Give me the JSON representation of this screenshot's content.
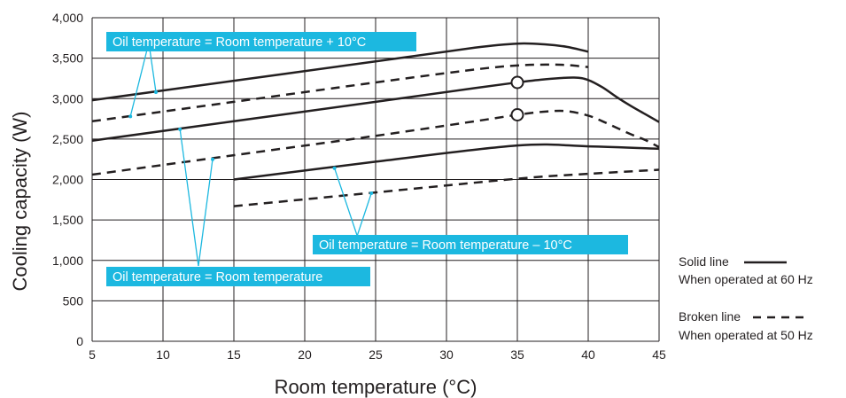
{
  "chart_data": {
    "type": "line",
    "xlabel": "Room temperature (°C)",
    "ylabel": "Cooling capacity (W)",
    "xlim": [
      5,
      45
    ],
    "ylim": [
      0,
      4000
    ],
    "x_ticks": [
      "5",
      "10",
      "15",
      "20",
      "25",
      "30",
      "35",
      "40",
      "45"
    ],
    "y_ticks": [
      "0",
      "500",
      "1,000",
      "1,500",
      "2,000",
      "2,500",
      "3,000",
      "3,500",
      "4,000"
    ],
    "grid": true,
    "series": [
      {
        "group": "Oil temperature = Room temperature + 10°C",
        "style": "solid",
        "points": [
          [
            5,
            2980
          ],
          [
            15,
            3220
          ],
          [
            25,
            3460
          ],
          [
            32,
            3630
          ],
          [
            35,
            3680
          ],
          [
            37,
            3670
          ],
          [
            38.5,
            3640
          ],
          [
            40,
            3580
          ]
        ]
      },
      {
        "group": "Oil temperature = Room temperature + 10°C",
        "style": "dashed",
        "points": [
          [
            5,
            2720
          ],
          [
            15,
            2960
          ],
          [
            25,
            3200
          ],
          [
            32,
            3360
          ],
          [
            35,
            3410
          ],
          [
            37,
            3420
          ],
          [
            38.5,
            3415
          ],
          [
            40,
            3390
          ]
        ]
      },
      {
        "group": "Oil temperature = Room temperature",
        "style": "solid",
        "points": [
          [
            5,
            2480
          ],
          [
            15,
            2720
          ],
          [
            25,
            2960
          ],
          [
            32,
            3130
          ],
          [
            35,
            3200
          ],
          [
            37,
            3240
          ],
          [
            39,
            3260
          ],
          [
            40,
            3230
          ],
          [
            41,
            3140
          ],
          [
            42,
            3020
          ],
          [
            43,
            2910
          ],
          [
            44,
            2810
          ],
          [
            45,
            2710
          ]
        ]
      },
      {
        "group": "Oil temperature = Room temperature",
        "style": "dashed",
        "points": [
          [
            5,
            2060
          ],
          [
            15,
            2300
          ],
          [
            25,
            2540
          ],
          [
            32,
            2720
          ],
          [
            35,
            2800
          ],
          [
            37,
            2840
          ],
          [
            38.5,
            2845
          ],
          [
            40,
            2790
          ],
          [
            41,
            2720
          ],
          [
            42,
            2640
          ],
          [
            43,
            2560
          ],
          [
            44,
            2490
          ],
          [
            45,
            2400
          ]
        ]
      },
      {
        "group": "Oil temperature = Room temperature – 10°C",
        "style": "solid",
        "points": [
          [
            15,
            2000
          ],
          [
            25,
            2220
          ],
          [
            35,
            2420
          ],
          [
            40,
            2410
          ],
          [
            45,
            2380
          ]
        ]
      },
      {
        "group": "Oil temperature = Room temperature – 10°C",
        "style": "dashed",
        "points": [
          [
            15,
            1670
          ],
          [
            25,
            1840
          ],
          [
            35,
            2010
          ],
          [
            40,
            2070
          ],
          [
            45,
            2120
          ]
        ]
      }
    ],
    "markers": [
      [
        35,
        3200
      ],
      [
        35,
        2800
      ]
    ],
    "annotations": [
      "Oil temperature = Room temperature + 10°C",
      "Oil temperature = Room temperature",
      "Oil temperature = Room temperature – 10°C"
    ],
    "legend": {
      "placement": "right",
      "solid_label": "Solid line",
      "solid_desc": "When operated at 60 Hz",
      "broken_label": "Broken line",
      "broken_desc": "When operated at 50 Hz"
    }
  },
  "colors": {
    "line": "#231f20",
    "grid": "#231f20",
    "callout": "#1cb8e0",
    "callout_text": "#ffffff",
    "background": "#ffffff"
  }
}
